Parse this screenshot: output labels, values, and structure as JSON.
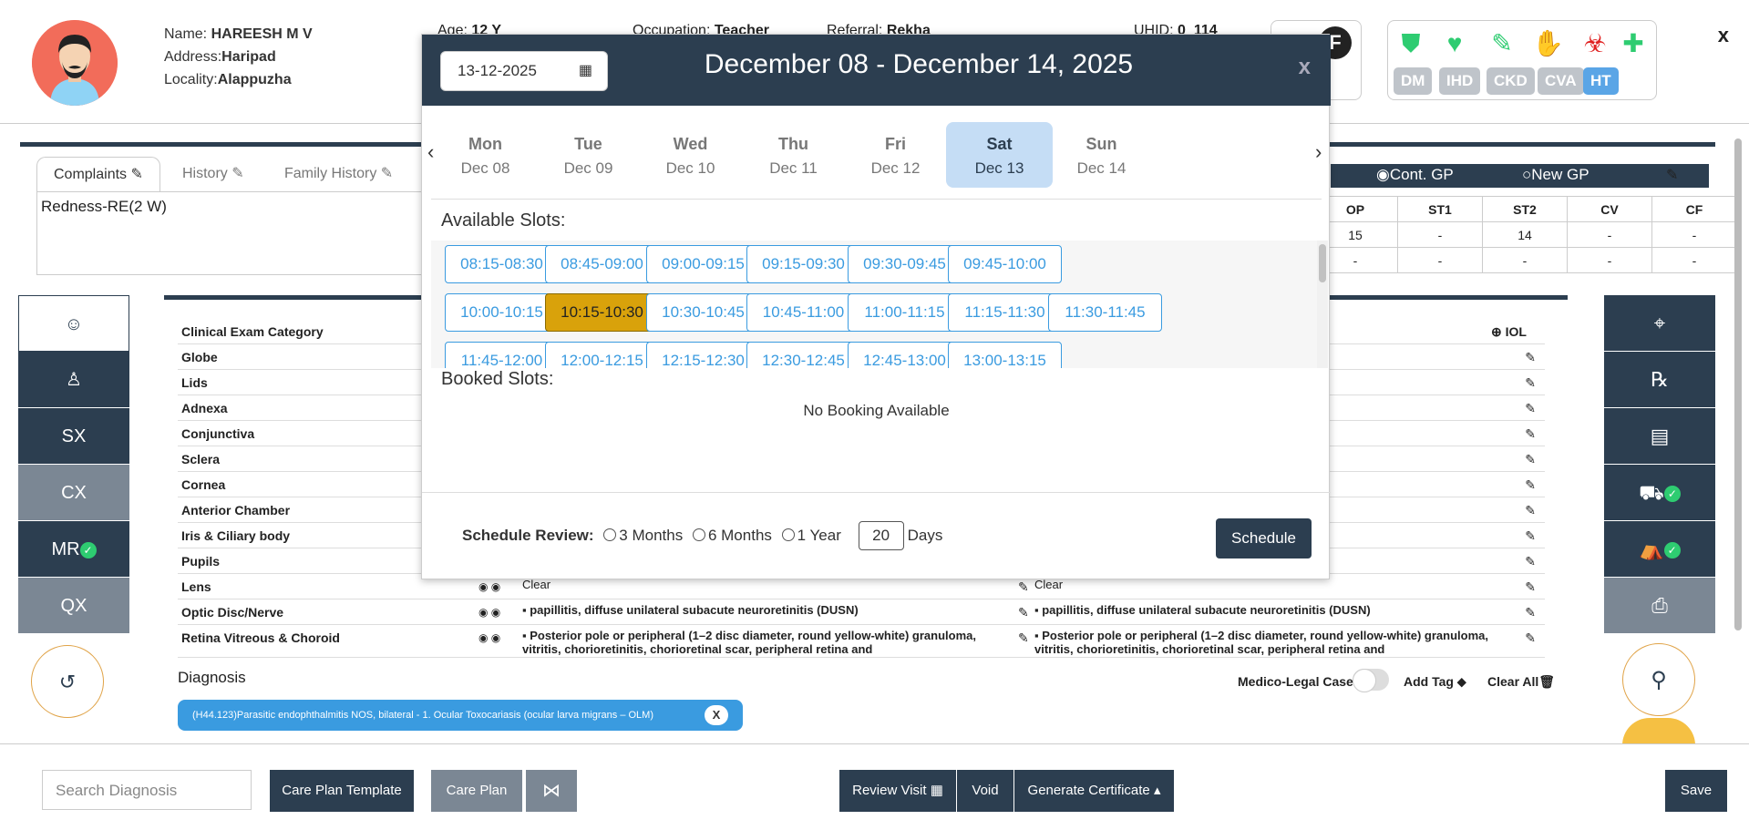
{
  "patient": {
    "name_label": "Name:",
    "name": "HAREESH M V",
    "address_label": "Address:",
    "address": "Haripad",
    "locality_label": "Locality:",
    "locality": "Alappuzha",
    "age_label": "Age:",
    "age": "12 Y",
    "occupation_label": "Occupation:",
    "occupation": "Teacher",
    "referral_label": "Referral:",
    "referral": "Rekha",
    "uhid_label": "UHID:",
    "uhid": "0_114"
  },
  "header": {
    "close_label": "x",
    "comorbidity_badges": [
      "DM",
      "IHD",
      "CKD",
      "CVA",
      "HT"
    ],
    "active_badge": "HT",
    "gender_icon_label": "F"
  },
  "tabs": [
    {
      "label": "Complaints"
    },
    {
      "label": "History"
    },
    {
      "label": "Family History"
    }
  ],
  "complaint_text": "Redness-RE(2 W)",
  "gp": {
    "option1": "Cont. GP",
    "option2": "New GP"
  },
  "va_table": {
    "headers": [
      "OP",
      "ST1",
      "ST2",
      "CV",
      "CF"
    ],
    "rows": [
      [
        "15",
        "-",
        "14",
        "-",
        "-"
      ],
      [
        "-",
        "-",
        "-",
        "-",
        "-"
      ]
    ]
  },
  "left_nav": {
    "sx": "SX",
    "cx": "CX",
    "mr": "MR",
    "qx": "QX"
  },
  "exam": {
    "header": "Clinical Exam Category",
    "iol_label": "IOL",
    "rows": [
      {
        "label": "Globe",
        "re": "",
        "le": ""
      },
      {
        "label": "Lids",
        "re": "",
        "le": ""
      },
      {
        "label": "Adnexa",
        "re": "",
        "le": ""
      },
      {
        "label": "Conjunctiva",
        "re": "",
        "le": ""
      },
      {
        "label": "Sclera",
        "re": "",
        "le": ""
      },
      {
        "label": "Cornea",
        "re": "",
        "le": ""
      },
      {
        "label": "Anterior Chamber",
        "re": "",
        "le": ""
      },
      {
        "label": "Iris & Ciliary body",
        "re": "",
        "le": ""
      },
      {
        "label": "Pupils",
        "re": "",
        "le": ""
      },
      {
        "label": "Lens",
        "re": "Clear",
        "le": "Clear"
      },
      {
        "label": "Optic Disc/Nerve",
        "re": "▪  papillitis, diffuse unilateral subacute neuroretinitis (DUSN)",
        "le": "▪  papillitis, diffuse unilateral subacute neuroretinitis (DUSN)"
      },
      {
        "label": "Retina Vitreous & Choroid",
        "re": "▪  Posterior pole or peripheral (1–2 disc diameter, round yellow-white) granuloma, vitritis, chorioretinitis, chorioretinal scar, peripheral retina and",
        "le": "▪  Posterior pole or peripheral (1–2 disc diameter, round yellow-white) granuloma, vitritis, chorioretinitis, chorioretinal scar, peripheral retina and"
      }
    ]
  },
  "diagnosis": {
    "label": "Diagnosis",
    "chip": "(H44.123)Parasitic endophthalmitis NOS, bilateral - 1. Ocular Toxocariasis (ocular larva migrans – OLM)",
    "chip_close": "X",
    "medico_legal": "Medico-Legal Case",
    "add_tag": "Add Tag",
    "clear_all": "Clear All"
  },
  "footer": {
    "search_placeholder": "Search Diagnosis",
    "care_plan_template": "Care Plan Template",
    "care_plan": "Care Plan",
    "review_visit": "Review Visit",
    "void": "Void",
    "generate_certificate": "Generate Certificate",
    "save": "Save"
  },
  "modal": {
    "date_value": "13-12-2025",
    "title": "December 08 - December 14, 2025",
    "close_label": "x",
    "days": [
      {
        "name": "Mon",
        "date": "Dec 08"
      },
      {
        "name": "Tue",
        "date": "Dec 09"
      },
      {
        "name": "Wed",
        "date": "Dec 10"
      },
      {
        "name": "Thu",
        "date": "Dec 11"
      },
      {
        "name": "Fri",
        "date": "Dec 12"
      },
      {
        "name": "Sat",
        "date": "Dec 13"
      },
      {
        "name": "Sun",
        "date": "Dec 14"
      }
    ],
    "active_day": "Sat",
    "available_label": "Available Slots:",
    "slot_rows": [
      [
        "08:15-08:30",
        "08:45-09:00",
        "09:00-09:15",
        "09:15-09:30",
        "09:30-09:45",
        "09:45-10:00"
      ],
      [
        "10:00-10:15",
        "10:15-10:30",
        "10:30-10:45",
        "10:45-11:00",
        "11:00-11:15",
        "11:15-11:30",
        "11:30-11:45"
      ],
      [
        "11:45-12:00",
        "12:00-12:15",
        "12:15-12:30",
        "12:30-12:45",
        "12:45-13:00",
        "13:00-13:15"
      ]
    ],
    "selected_slot": "10:15-10:30",
    "booked_label": "Booked Slots:",
    "no_booking": "No Booking Available",
    "review_label": "Schedule Review:",
    "opt_3m": "3 Months",
    "opt_6m": "6 Months",
    "opt_1y": "1 Year",
    "days_value": "20",
    "days_label": "Days",
    "schedule_button": "Schedule"
  },
  "colors": {
    "navy": "#2c3e50",
    "accent_blue": "#3a9be0",
    "selected_slot": "#d9a20b",
    "active_day": "#c5ddf5",
    "gray_nav": "#7b8794"
  }
}
